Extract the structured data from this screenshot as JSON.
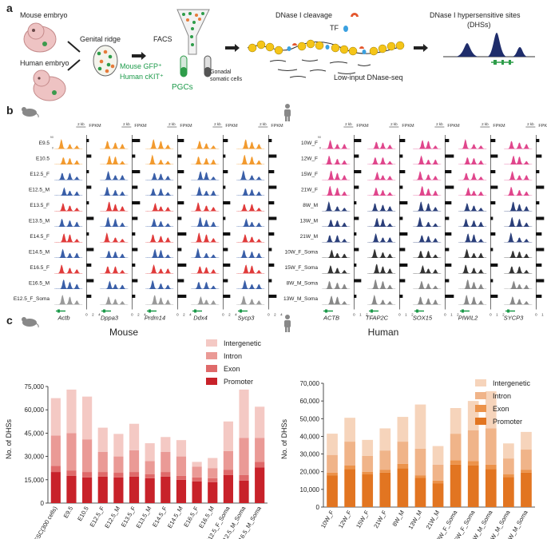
{
  "panel_a": {
    "letter": "a",
    "mouse_embryo": "Mouse embryo",
    "human_embryo": "Human embryo",
    "genital_ridge": "Genital ridge",
    "facs": "FACS",
    "mouse_gfp": "Mouse GFP⁺",
    "human_ckit": "Human cKIT⁺",
    "pgcs": "PGCs",
    "gonadal_line1": "Gonadal",
    "gonadal_line2": "somatic cells",
    "dnase_cleavage": "DNase I cleavage",
    "tf": "TF",
    "low_input": "Low-input DNase-seq",
    "dhs_line1": "DNase I hypersensitive sites",
    "dhs_line2": "(DHSs)"
  },
  "panel_b": {
    "letter": "b",
    "scale": "2 kb",
    "fpkm": "FPKM",
    "ymax": "90",
    "ymin": "0",
    "mouse_rows": [
      "E9.5",
      "E10.5",
      "E12.5_F",
      "E12.5_M",
      "E13.5_F",
      "E13.5_M",
      "E14.5_F",
      "E14.5_M",
      "E16.5_F",
      "E16.5_M",
      "E12.5_F_Soma"
    ],
    "mouse_row_colors": [
      "#f29a2e",
      "#f29a2e",
      "#3a5fa8",
      "#3a5fa8",
      "#e03b3b",
      "#3a5fa8",
      "#e03b3b",
      "#3a5fa8",
      "#e03b3b",
      "#3a5fa8",
      "#999999"
    ],
    "mouse_genes": [
      "Actb",
      "Dppa3",
      "Prdm14",
      "Ddx4",
      "Sycp3"
    ],
    "mouse_fpkm_ticks": [
      "0",
      "2",
      "4"
    ],
    "human_rows": [
      "10W_F",
      "12W_F",
      "15W_F",
      "21W_F",
      "8W_M",
      "13W_M",
      "21W_M",
      "10W_F_Soma",
      "15W_F_Soma",
      "8W_M_Soma",
      "13W_M_Soma"
    ],
    "human_row_colors": [
      "#e0468c",
      "#e0468c",
      "#e0468c",
      "#e0468c",
      "#2b3f7a",
      "#2b3f7a",
      "#2b3f7a",
      "#333333",
      "#333333",
      "#888888",
      "#888888"
    ],
    "human_genes": [
      "ACTB",
      "TFAP2C",
      "SOX15",
      "PIWIL2",
      "SYCP3"
    ],
    "human_fpkm_ticks": [
      "0",
      "1",
      "2"
    ]
  },
  "panel_c": {
    "letter": "c",
    "ylabel": "No. of DHSs",
    "legend": [
      "Intergenetic",
      "Intron",
      "Exon",
      "Promoter"
    ]
  },
  "chart_data": [
    {
      "type": "bar",
      "title": "Mouse",
      "ylabel": "No. of DHSs",
      "ylim": [
        0,
        75000
      ],
      "yticks": [
        "0",
        "15,000",
        "30,000",
        "45,000",
        "60,000",
        "75,000"
      ],
      "categories": [
        "ESC(300 cells)",
        "E9.5",
        "E10.5",
        "E12.5_F",
        "E12.5_M",
        "E13.5_F",
        "E13.5_M",
        "E14.5_F",
        "E14.5_M",
        "E16.5_F",
        "E16.5_M",
        "E12.5_F_Soma",
        "E12.5_M_Soma",
        "E16.5_M_Soma"
      ],
      "stacked": true,
      "series": [
        {
          "name": "Promoter",
          "color": "#c8222a",
          "values": [
            20000,
            17500,
            16500,
            17000,
            16500,
            17000,
            16000,
            17000,
            15000,
            14000,
            13500,
            18000,
            14500,
            23000
          ]
        },
        {
          "name": "Exon",
          "color": "#df6a6a",
          "values": [
            4000,
            3500,
            3500,
            3000,
            3000,
            3000,
            2500,
            3000,
            2500,
            2500,
            2500,
            3500,
            3500,
            3500
          ]
        },
        {
          "name": "Intron",
          "color": "#ea9a96",
          "values": [
            19500,
            24000,
            21000,
            13000,
            10500,
            14000,
            8500,
            13000,
            12500,
            7000,
            6500,
            12000,
            24000,
            15500
          ]
        },
        {
          "name": "Intergenetic",
          "color": "#f4c9c4",
          "values": [
            24000,
            28000,
            27500,
            15500,
            14500,
            17000,
            11500,
            9500,
            10500,
            3000,
            6500,
            19000,
            31000,
            20000
          ]
        }
      ],
      "grid": false,
      "legend_position": "top-right"
    },
    {
      "type": "bar",
      "title": "Human",
      "ylabel": "No. of DHSs",
      "ylim": [
        0,
        70000
      ],
      "yticks": [
        "0",
        "10,000",
        "20,000",
        "30,000",
        "40,000",
        "50,000",
        "60,000",
        "70,000"
      ],
      "categories": [
        "10W_F",
        "12W_F",
        "15W_F",
        "21W_F",
        "8W_M",
        "13W_M",
        "21W_M",
        "10W_F_Soma",
        "15W_F_Soma",
        "8W_M_Soma",
        "11W_M_Soma",
        "13W_M_Soma"
      ],
      "stacked": true,
      "series": [
        {
          "name": "Promoter",
          "color": "#e27521",
          "values": [
            18000,
            21500,
            18500,
            19500,
            22000,
            16500,
            13500,
            24000,
            23500,
            21500,
            17000,
            19500
          ]
        },
        {
          "name": "Exon",
          "color": "#ec934b",
          "values": [
            1500,
            2000,
            1500,
            1500,
            2500,
            1500,
            1500,
            2500,
            2500,
            2500,
            1500,
            1500
          ]
        },
        {
          "name": "Intron",
          "color": "#f0b489",
          "values": [
            10000,
            13500,
            9000,
            11000,
            12500,
            15000,
            9000,
            15000,
            17500,
            20500,
            9000,
            11500
          ]
        },
        {
          "name": "Intergenetic",
          "color": "#f6d4bb",
          "values": [
            12000,
            13500,
            9000,
            12500,
            14000,
            25000,
            10500,
            14500,
            16500,
            21000,
            8500,
            10000
          ]
        }
      ],
      "grid": false,
      "legend_position": "top-right"
    }
  ]
}
